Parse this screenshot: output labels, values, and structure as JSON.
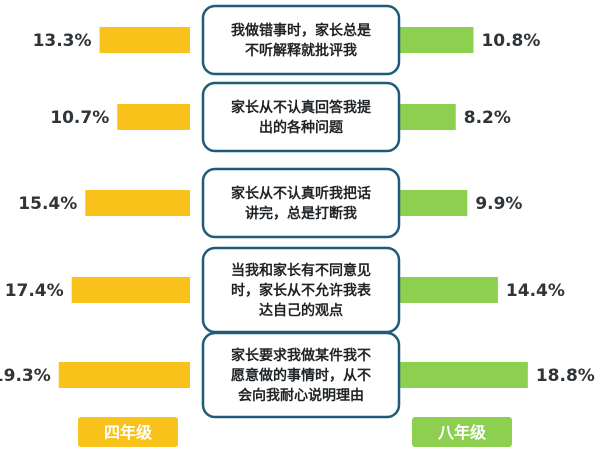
{
  "chart_data": {
    "type": "bar",
    "categories": [
      "我做错事时，家长总是不听解释就批评我",
      "家长从不认真回答我提出的各种问题",
      "家长从不认真听我把话讲完，总是打断我",
      "当我和家长有不同意见时，家长从不允许我表达自己的观点",
      "家长要求我做某件我不愿意做的事情时，从不会向我耐心说明理由"
    ],
    "category_lines": [
      [
        "我做错事时，家长总是",
        "不听解释就批评我"
      ],
      [
        "家长从不认真回答我提",
        "出的各种问题"
      ],
      [
        "家长从不认真听我把话",
        "讲完，总是打断我"
      ],
      [
        "当我和家长有不同意见",
        "时，家长从不允许我表",
        "达自己的观点"
      ],
      [
        "家长要求我做某件我不",
        "愿意做的事情时，从不",
        "会向我耐心说明理由"
      ]
    ],
    "series": [
      {
        "name": "四年级",
        "values": [
          13.3,
          10.7,
          15.4,
          17.4,
          19.3
        ],
        "labels": [
          "13.3%",
          "10.7%",
          "15.4%",
          "17.4%",
          "19.3%"
        ],
        "color": "#f9c21b"
      },
      {
        "name": "八年级",
        "values": [
          10.8,
          8.2,
          9.9,
          14.4,
          18.8
        ],
        "labels": [
          "10.8%",
          "8.2%",
          "9.9%",
          "14.4%",
          "18.8%"
        ],
        "color": "#8dcf4f"
      }
    ],
    "layout_style": "butterfly",
    "box_border_color": "#1f5a78"
  }
}
